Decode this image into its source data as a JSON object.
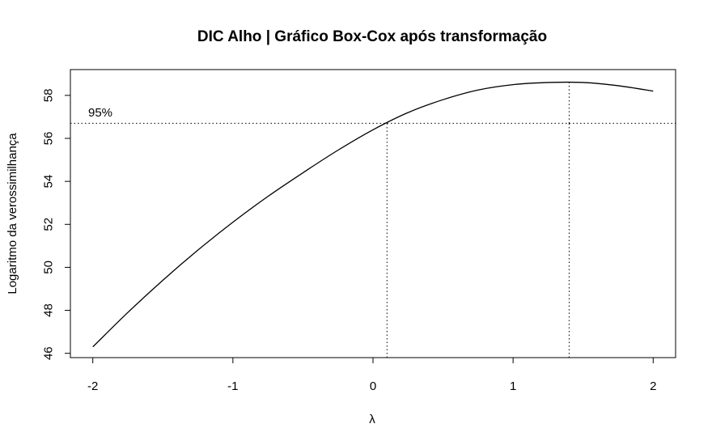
{
  "chart_data": {
    "type": "line",
    "title": "DIC Alho | Gráfico Box-Cox após transformação",
    "xlabel": "λ",
    "ylabel": "Logaritmo da verossimilhança",
    "xlim": [
      -2.16,
      2.16
    ],
    "ylim": [
      45.8,
      59.2
    ],
    "x_ticks": [
      -2,
      -1,
      0,
      1,
      2
    ],
    "x_tick_labels": [
      "-2",
      "-1",
      "0",
      "1",
      "2"
    ],
    "y_ticks": [
      46,
      48,
      50,
      52,
      54,
      56,
      58
    ],
    "y_tick_labels": [
      "46",
      "48",
      "50",
      "52",
      "54",
      "56",
      "58"
    ],
    "grid": false,
    "series": [
      {
        "x": [
          -2.0,
          -1.75,
          -1.5,
          -1.25,
          -1.0,
          -0.75,
          -0.5,
          -0.25,
          0.0,
          0.25,
          0.5,
          0.75,
          1.0,
          1.25,
          1.5,
          1.75,
          2.0
        ],
        "y": [
          46.3,
          47.9,
          49.4,
          50.8,
          52.1,
          53.3,
          54.4,
          55.45,
          56.4,
          57.2,
          57.8,
          58.25,
          58.5,
          58.6,
          58.6,
          58.45,
          58.2
        ],
        "color": "#000000"
      }
    ],
    "reference_lines": {
      "ci_threshold_y": 56.7,
      "ci_label": "95%",
      "vertical_x": [
        0.1,
        1.4
      ]
    }
  }
}
